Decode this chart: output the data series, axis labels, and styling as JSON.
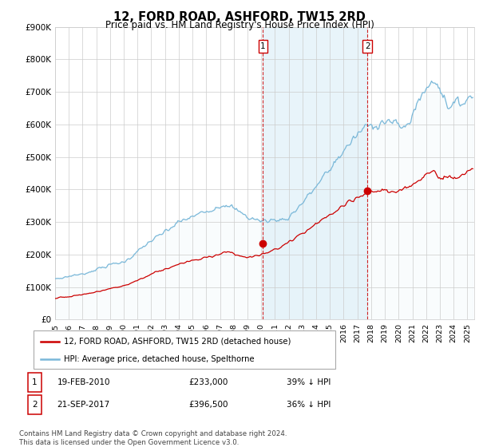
{
  "title": "12, FORD ROAD, ASHFORD, TW15 2RD",
  "subtitle": "Price paid vs. HM Land Registry's House Price Index (HPI)",
  "ylabel_ticks": [
    "£0",
    "£100K",
    "£200K",
    "£300K",
    "£400K",
    "£500K",
    "£600K",
    "£700K",
    "£800K",
    "£900K"
  ],
  "ylim": [
    0,
    900000
  ],
  "xlim_start": 1995.0,
  "xlim_end": 2025.5,
  "hpi_color": "#7ab8d9",
  "hpi_fill_color": "#daeef7",
  "price_color": "#cc0000",
  "marker_color": "#cc0000",
  "vline_color": "#cc0000",
  "transaction1_x": 2010.13,
  "transaction1_y": 233000,
  "transaction1_label": "1",
  "transaction1_date": "19-FEB-2010",
  "transaction1_price": "£233,000",
  "transaction1_note": "39% ↓ HPI",
  "transaction2_x": 2017.72,
  "transaction2_y": 396500,
  "transaction2_label": "2",
  "transaction2_date": "21-SEP-2017",
  "transaction2_price": "£396,500",
  "transaction2_note": "36% ↓ HPI",
  "legend_line1": "12, FORD ROAD, ASHFORD, TW15 2RD (detached house)",
  "legend_line2": "HPI: Average price, detached house, Spelthorne",
  "footer": "Contains HM Land Registry data © Crown copyright and database right 2024.\nThis data is licensed under the Open Government Licence v3.0.",
  "grid_color": "#cccccc",
  "background_color": "#ffffff",
  "plot_bg_color": "#ffffff"
}
